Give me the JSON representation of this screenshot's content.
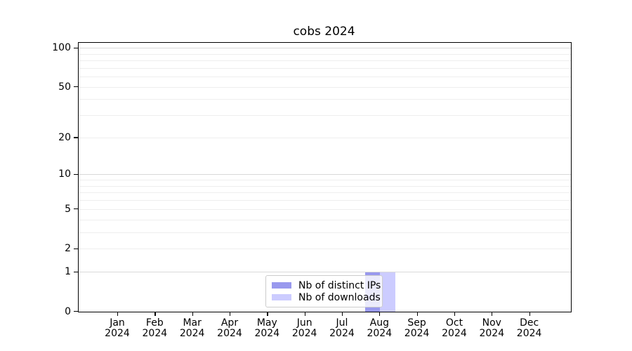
{
  "title": "cobs 2024",
  "chart_data": {
    "type": "bar",
    "title": "cobs 2024",
    "categories": [
      "Jan 2024",
      "Feb 2024",
      "Mar 2024",
      "Apr 2024",
      "May 2024",
      "Jun 2024",
      "Jul 2024",
      "Aug 2024",
      "Sep 2024",
      "Oct 2024",
      "Nov 2024",
      "Dec 2024"
    ],
    "series": [
      {
        "name": "Nb of distinct IPs",
        "color": "#9999ee",
        "values": [
          0,
          0,
          0,
          0,
          0,
          0,
          0,
          1,
          0,
          0,
          0,
          0
        ]
      },
      {
        "name": "Nb of downloads",
        "color": "#ccccff",
        "values": [
          0,
          0,
          0,
          0,
          0,
          0,
          0,
          1,
          0,
          0,
          0,
          0
        ]
      }
    ],
    "yscale": "log1p",
    "ylim": [
      0,
      110
    ],
    "y_tick_labels": [
      0,
      1,
      2,
      5,
      10,
      20,
      50,
      100
    ],
    "grid_major": [
      1,
      10,
      100
    ],
    "grid_minor": [
      2,
      3,
      4,
      5,
      6,
      7,
      8,
      9,
      20,
      30,
      40,
      50,
      60,
      70,
      80,
      90
    ],
    "grid": true,
    "xlabel": "",
    "ylabel": "",
    "legend_position": "lower center",
    "colors": {
      "axis": "#000000",
      "grid_major": "#d9d9d9",
      "grid_minor": "#eeeeee",
      "legend_border": "#cccccc",
      "background": "#ffffff"
    }
  }
}
